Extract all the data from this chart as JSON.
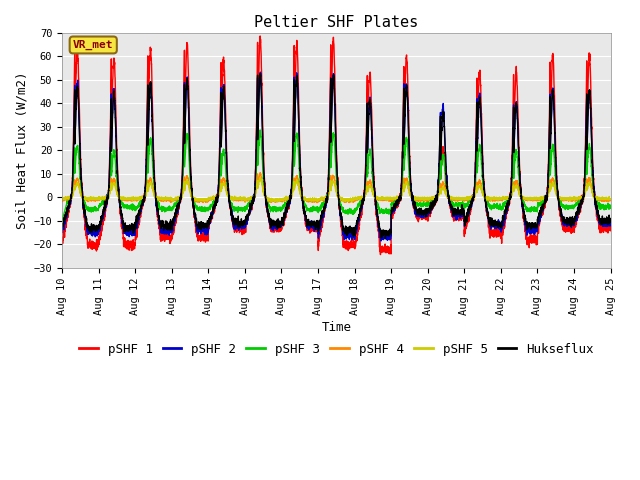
{
  "title": "Peltier SHF Plates",
  "xlabel": "Time",
  "ylabel": "Soil Heat Flux (W/m2)",
  "ylim": [
    -30,
    70
  ],
  "yticks": [
    -30,
    -20,
    -10,
    0,
    10,
    20,
    30,
    40,
    50,
    60,
    70
  ],
  "x_tick_labels": [
    "Aug 10",
    "Aug 11",
    "Aug 12",
    "Aug 13",
    "Aug 14",
    "Aug 15",
    "Aug 16",
    "Aug 17",
    "Aug 18",
    "Aug 19",
    "Aug 20",
    "Aug 21",
    "Aug 22",
    "Aug 23",
    "Aug 24",
    "Aug 25"
  ],
  "annotation_text": "VR_met",
  "annotation_color": "#8B0000",
  "annotation_bg": "#f5e642",
  "line_colors": {
    "pSHF 1": "#ff0000",
    "pSHF 2": "#0000cc",
    "pSHF 3": "#00cc00",
    "pSHF 4": "#ff8800",
    "pSHF 5": "#cccc00",
    "Hukseflux": "#000000"
  },
  "bg_color": "#e8e8e8",
  "fig_bg": "#ffffff",
  "title_fontsize": 11,
  "axis_fontsize": 9,
  "legend_fontsize": 9,
  "days": 15,
  "pts_per_day": 288,
  "pSHF1_day_peaks": [
    62,
    59,
    63,
    65,
    58,
    67,
    65,
    67,
    53,
    60,
    20,
    53,
    53,
    60,
    60
  ],
  "pSHF1_night_troughs": [
    -20,
    -20,
    -17,
    -17,
    -13,
    -13,
    -13,
    -20,
    -22,
    -8,
    -8,
    -15,
    -18,
    -13,
    -13
  ],
  "pSHF2_day_peaks": [
    48,
    45,
    48,
    50,
    48,
    53,
    52,
    52,
    42,
    48,
    38,
    43,
    40,
    45,
    45
  ],
  "pSHF2_night_troughs": [
    -15,
    -15,
    -14,
    -14,
    -12,
    -12,
    -12,
    -16,
    -17,
    -7,
    -7,
    -12,
    -14,
    -11,
    -11
  ],
  "pSHF3_day_peaks": [
    22,
    20,
    25,
    27,
    20,
    28,
    27,
    27,
    20,
    25,
    18,
    22,
    20,
    22,
    22
  ],
  "pSHF3_night_troughs": [
    -5,
    -4,
    -5,
    -5,
    -5,
    -5,
    -5,
    -6,
    -6,
    -3,
    -3,
    -4,
    -5,
    -4,
    -4
  ],
  "pSHF4_day_peaks": [
    8,
    8,
    8,
    9,
    8,
    10,
    9,
    9,
    7,
    8,
    6,
    7,
    7,
    8,
    8
  ],
  "pSHF4_night_troughs": [
    -1,
    -1,
    -1,
    -1.5,
    -1,
    -1.5,
    -1.5,
    -1.5,
    -1,
    -1,
    -1,
    -1,
    -1,
    -1,
    -1
  ],
  "pSHF5_day_peaks": [
    6,
    6,
    6,
    7,
    6,
    8,
    7,
    7,
    5,
    6,
    4,
    5,
    5,
    6,
    6
  ],
  "pSHF5_night_troughs": [
    -0.5,
    -0.5,
    -0.5,
    -1,
    -0.5,
    -1,
    -1,
    -1,
    -0.5,
    -0.5,
    -0.5,
    -0.5,
    -0.5,
    -0.5,
    -0.5
  ],
  "HuksF_day_peaks": [
    47,
    44,
    49,
    50,
    46,
    52,
    51,
    51,
    41,
    47,
    36,
    42,
    40,
    45,
    45
  ],
  "HuksF_night_troughs": [
    -13,
    -13,
    -12,
    -12,
    -11,
    -11,
    -11,
    -14,
    -15,
    -6,
    -6,
    -11,
    -12,
    -10,
    -10
  ]
}
